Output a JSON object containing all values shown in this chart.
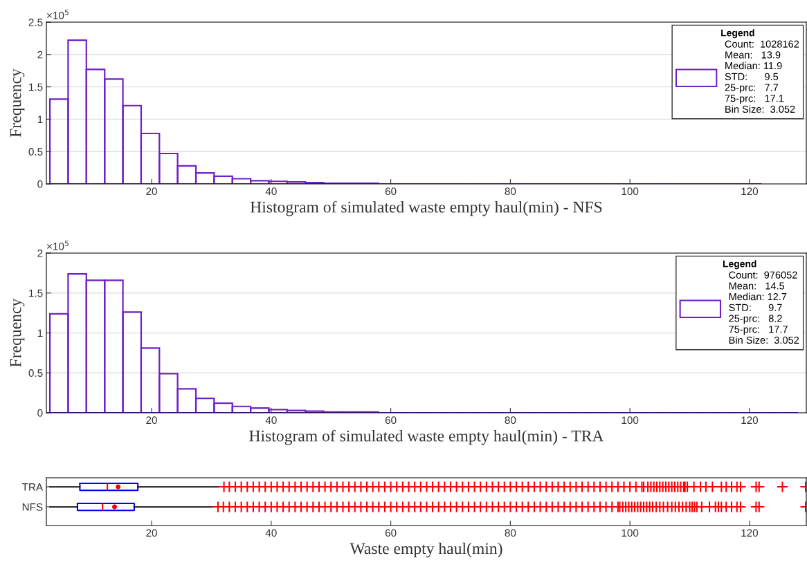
{
  "chart_data": [
    {
      "type": "histogram",
      "xlabel": "Histogram of simulated waste empty haul(min) - NFS",
      "ylabel": "Frequency",
      "annotations": [
        "×10$^{5}$"
      ],
      "bins": [
        2.99,
        6.04,
        9.09,
        12.15,
        15.2,
        18.25,
        21.3,
        24.35,
        27.41,
        30.46,
        33.51,
        36.56,
        39.61,
        42.67,
        45.72,
        48.77,
        51.82,
        54.87,
        57.93,
        60.98,
        64.03,
        67.08,
        70.13,
        73.19,
        76.24,
        79.29,
        82.34,
        85.39,
        88.45,
        91.5,
        94.55,
        97.6,
        100.65,
        103.71,
        106.76,
        109.81,
        112.86,
        115.91,
        118.97,
        122.02
      ],
      "series": [
        {
          "name": "Count:  1028162\nMean:   13.9\nMedian: 11.9\nSTD:      9.5\n25-prc:   7.7\n75-prc:   17.1\nBin Size:  3.052",
          "color": "#7020c8",
          "values": [
            1.31,
            2.22,
            1.77,
            1.62,
            1.21,
            0.78,
            0.47,
            0.28,
            0.17,
            0.12,
            0.08,
            0.05,
            0.04,
            0.03,
            0.02,
            0.01,
            0.01,
            0.01,
            0,
            0,
            0,
            0,
            0,
            0,
            0,
            0,
            0,
            0,
            0,
            0,
            0,
            0,
            0,
            0,
            0,
            0,
            0,
            0,
            0
          ]
        }
      ],
      "legend_title": "Legend",
      "legend": "top right",
      "xlim": [
        2.4,
        129.5
      ],
      "xticks": [
        20,
        40,
        60,
        80,
        100,
        120
      ],
      "ylim": [
        0,
        2.5
      ],
      "yticks": [
        0,
        0.5,
        1,
        1.5,
        2,
        2.5
      ],
      "grid": "y"
    },
    {
      "type": "histogram",
      "xlabel": "Histogram of simulated waste empty haul(min) - TRA",
      "ylabel": "Frequency",
      "annotations": [
        "×10$^{5}$"
      ],
      "bins": [
        2.99,
        6.04,
        9.09,
        12.15,
        15.2,
        18.25,
        21.3,
        24.35,
        27.41,
        30.46,
        33.51,
        36.56,
        39.61,
        42.67,
        45.72,
        48.77,
        51.82,
        54.87,
        57.93,
        60.98,
        64.03,
        67.08,
        70.13,
        73.19,
        76.24,
        79.29,
        82.34,
        85.39,
        88.45,
        91.5,
        94.55,
        97.6,
        100.65,
        103.71,
        106.76,
        109.81,
        112.86,
        115.91,
        118.97,
        122.02,
        125.07,
        128.12
      ],
      "series": [
        {
          "name": "Count:  976052\nMean:   14.5\nMedian: 12.7\nSTD:      9.7\n25-prc:   8.2\n75-prc:   17.7\nBin Size:  3.052",
          "color": "#7020c8",
          "values": [
            1.24,
            1.74,
            1.66,
            1.66,
            1.26,
            0.81,
            0.49,
            0.3,
            0.18,
            0.12,
            0.08,
            0.06,
            0.04,
            0.03,
            0.02,
            0.01,
            0.01,
            0.01,
            0,
            0,
            0,
            0,
            0,
            0,
            0,
            0,
            0,
            0,
            0,
            0,
            0,
            0,
            0,
            0,
            0,
            0,
            0,
            0,
            0,
            0,
            0
          ]
        }
      ],
      "legend_title": "Legend",
      "legend": "top right",
      "xlim": [
        2.4,
        129.5
      ],
      "xticks": [
        20,
        40,
        60,
        80,
        100,
        120
      ],
      "ylim": [
        0,
        2
      ],
      "yticks": [
        0,
        0.5,
        1,
        1.5,
        2
      ],
      "grid": "y"
    },
    {
      "type": "box",
      "orientation": "horizontal",
      "xlabel": "Waste empty haul(min)",
      "categories": [
        "TRA",
        "NFS"
      ],
      "xlim": [
        2.4,
        129.5
      ],
      "xticks": [
        20,
        40,
        60,
        80,
        100,
        120
      ],
      "grid": false,
      "series": [
        {
          "color": "#0000ff",
          "boxes": [
            {
              "low": 3.0,
              "q1": 8.0,
              "median": 12.6,
              "q3": 17.7,
              "high": 31.4,
              "mean": 14.4,
              "outliers": [
                32.1,
                33,
                34,
                35,
                36,
                37,
                38,
                39,
                40,
                41,
                42,
                43,
                44,
                45,
                46,
                47,
                48,
                49,
                50,
                51,
                52,
                53,
                54,
                55,
                56,
                57,
                58,
                59,
                60,
                61,
                62,
                63,
                64,
                65,
                66,
                67,
                68,
                69,
                70,
                71,
                72,
                73,
                74,
                75,
                76,
                77,
                78,
                79,
                80,
                81,
                82,
                83,
                84,
                85,
                86,
                87,
                88,
                89,
                90,
                91,
                92,
                93,
                94,
                95,
                96,
                97,
                98,
                99,
                100,
                101,
                102,
                102.3,
                103,
                103.5,
                104,
                104.5,
                105,
                105.5,
                106,
                106.5,
                107,
                107.5,
                108,
                108.5,
                109,
                109.2,
                109.6,
                110.7,
                111.8,
                112.7,
                113.8,
                115.3,
                116.1,
                117,
                117.9,
                118.5,
                121.1,
                121.6,
                125.5,
                129.4
              ]
            },
            {
              "low": 3.0,
              "q1": 7.6,
              "median": 11.8,
              "q3": 17.1,
              "high": 30.5,
              "mean": 13.8,
              "outliers": [
                31.1,
                32,
                33,
                34,
                35,
                36,
                37,
                38,
                39,
                40,
                41,
                42,
                43,
                44,
                45,
                46,
                47,
                48,
                49,
                50,
                51,
                52,
                53,
                54,
                55,
                56,
                57,
                58,
                59,
                60,
                61,
                62,
                63,
                64,
                65,
                66,
                67,
                68,
                69,
                70,
                71,
                72,
                73,
                74,
                75,
                76,
                77,
                78,
                79,
                80,
                81,
                82,
                83,
                84,
                85,
                86,
                87,
                88,
                89,
                90,
                91,
                92,
                93,
                94,
                95,
                96,
                97,
                98,
                98.3,
                98.8,
                99.3,
                99.8,
                100.3,
                100.8,
                101.3,
                101.8,
                102.3,
                102.8,
                103.3,
                103.8,
                104.4,
                105,
                105.6,
                106.3,
                107,
                107.6,
                108.2,
                108.8,
                109.4,
                110,
                110.4,
                110.8,
                111.2,
                112,
                113.3,
                114.3,
                114.8,
                115.3,
                116.1,
                117,
                117.9,
                118.5,
                121.1,
                121.6,
                129.4
              ]
            }
          ]
        }
      ]
    }
  ]
}
